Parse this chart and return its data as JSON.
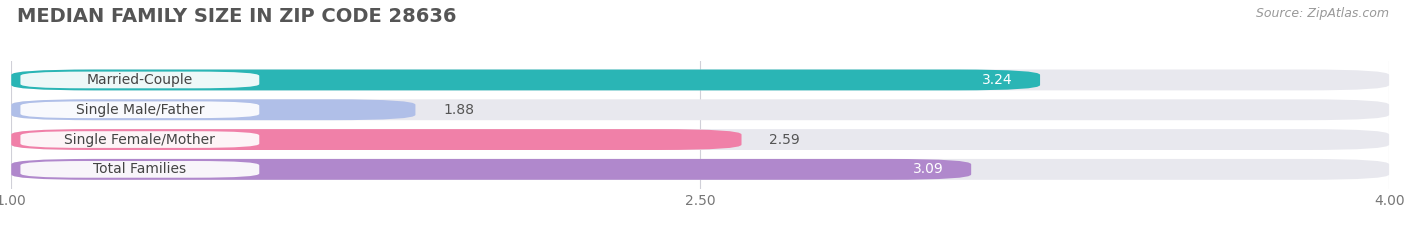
{
  "title": "MEDIAN FAMILY SIZE IN ZIP CODE 28636",
  "source": "Source: ZipAtlas.com",
  "categories": [
    "Married-Couple",
    "Single Male/Father",
    "Single Female/Mother",
    "Total Families"
  ],
  "values": [
    3.24,
    1.88,
    2.59,
    3.09
  ],
  "bar_colors": [
    "#2ab5b5",
    "#b0bfe8",
    "#f080a8",
    "#b088cc"
  ],
  "bar_bg_color": "#e8e8ee",
  "value_inside": [
    true,
    false,
    false,
    true
  ],
  "value_colors_inside": [
    "#ffffff",
    "#555555",
    "#555555",
    "#ffffff"
  ],
  "xlim": [
    1.0,
    4.0
  ],
  "xticks": [
    1.0,
    2.5,
    4.0
  ],
  "xtick_labels": [
    "1.00",
    "2.50",
    "4.00"
  ],
  "background_color": "#ffffff",
  "title_fontsize": 14,
  "label_fontsize": 10,
  "value_fontsize": 10,
  "source_fontsize": 9,
  "bar_height": 0.7,
  "label_pill_color": "#ffffff"
}
